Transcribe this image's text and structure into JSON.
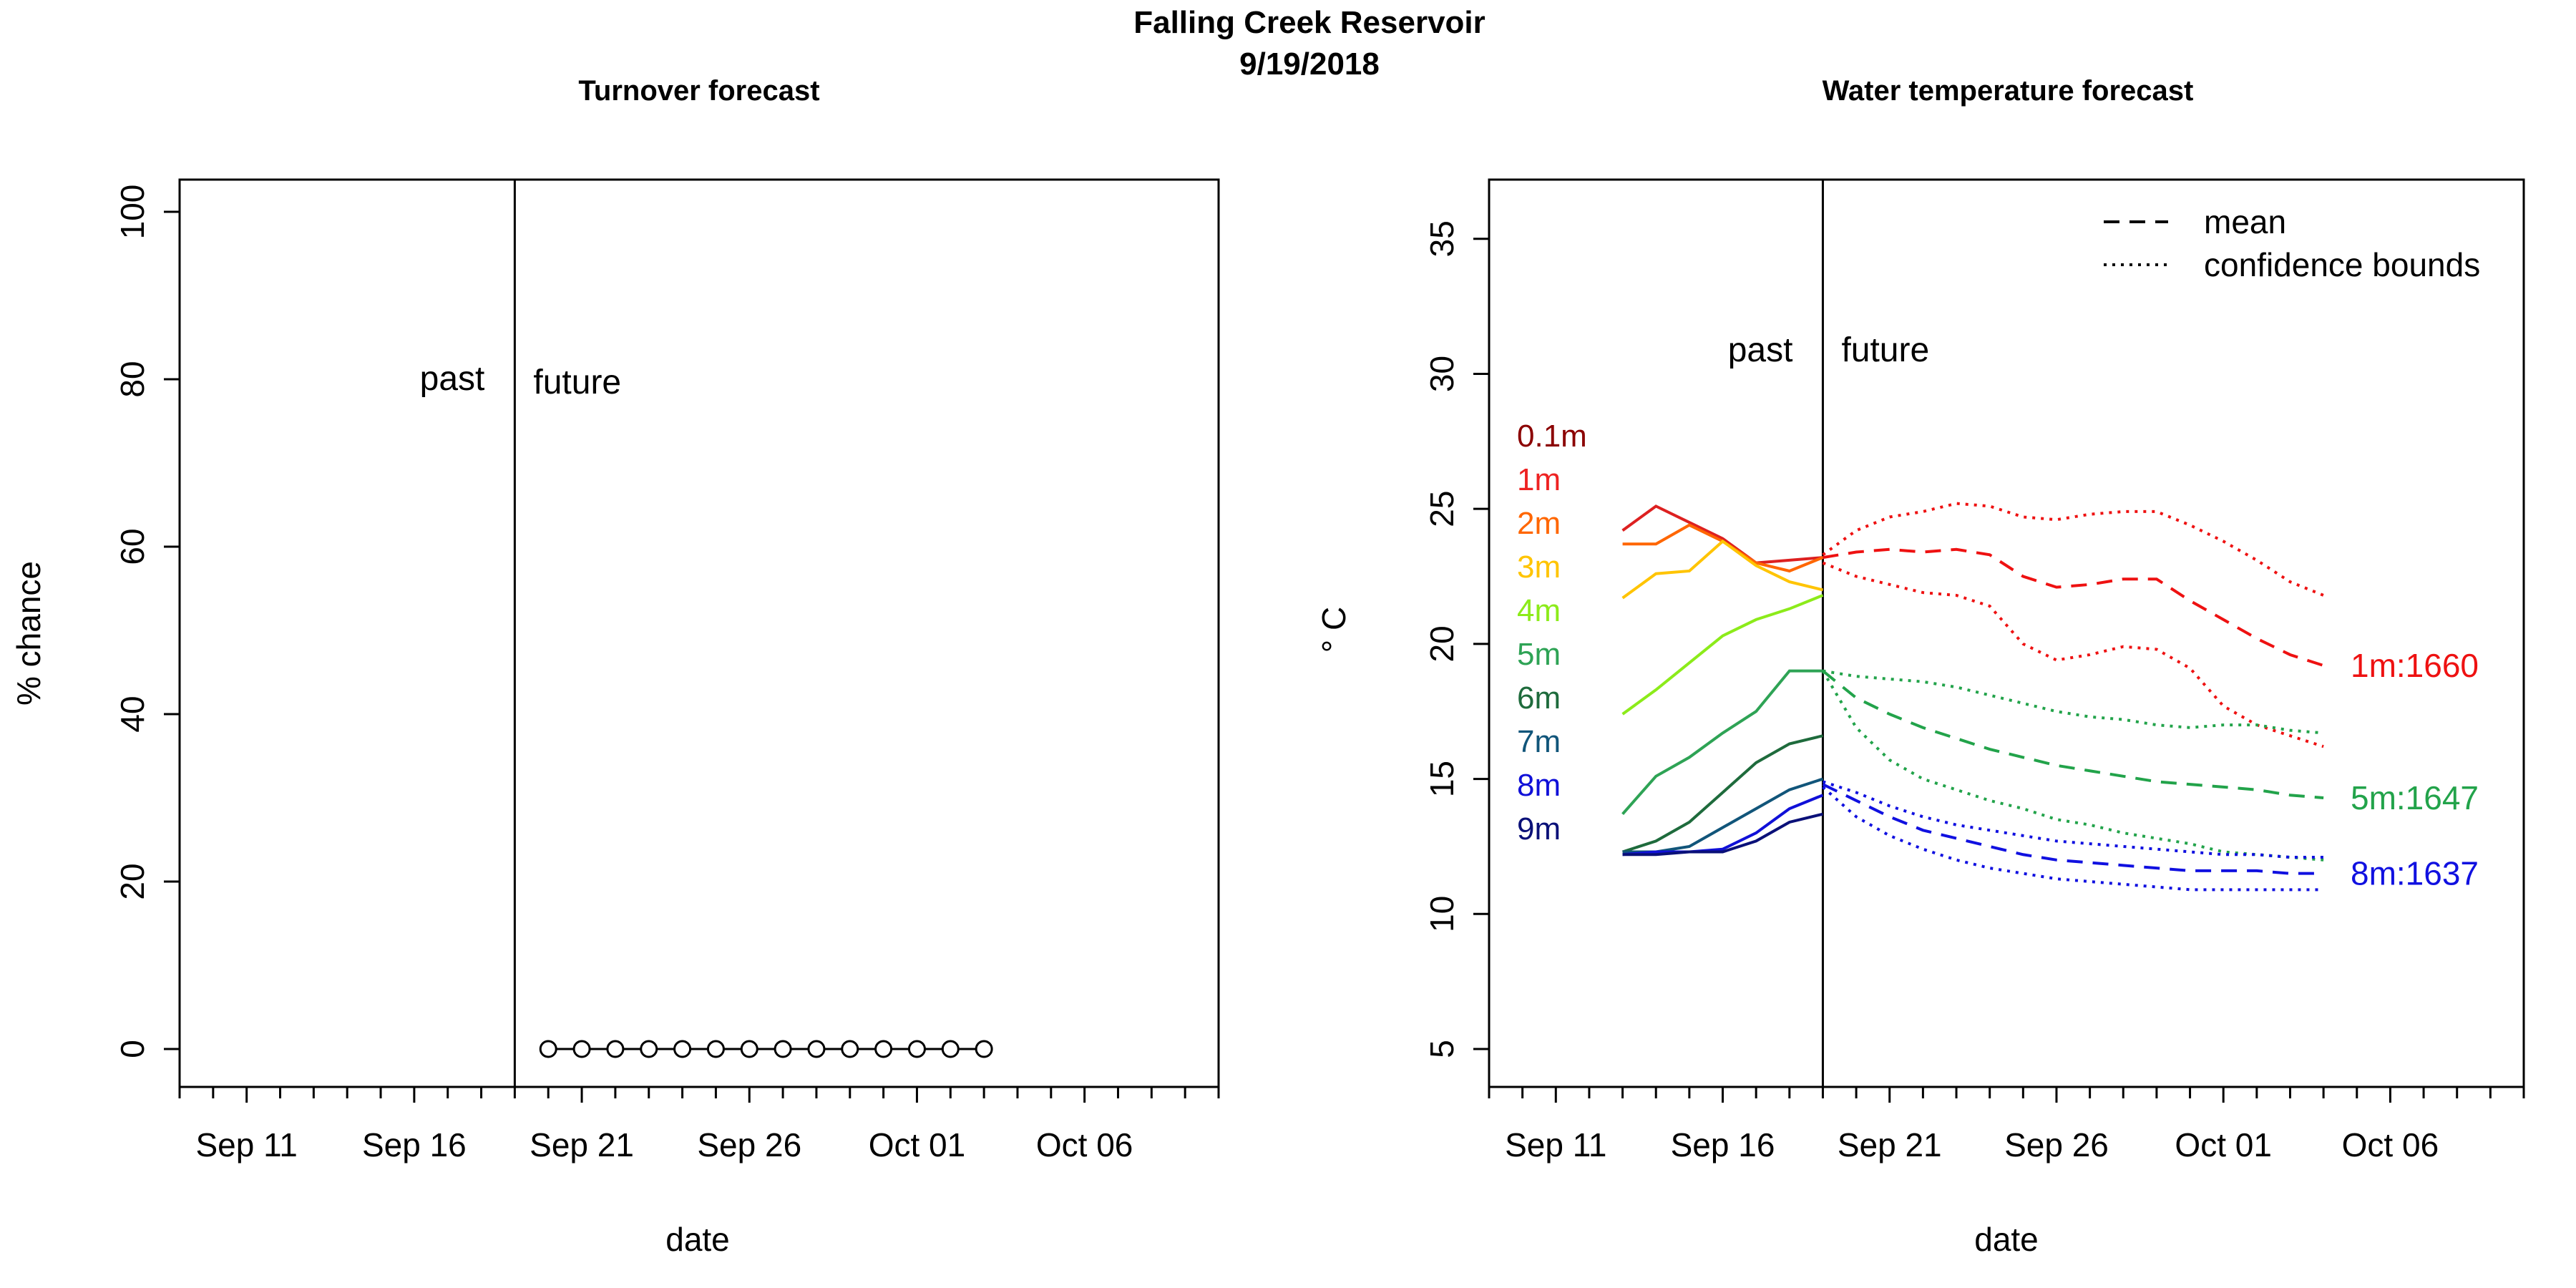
{
  "header": {
    "title": "Falling Creek Reservoir",
    "date": "9/19/2018"
  },
  "chart_data": [
    {
      "type": "line",
      "title": "Turnover forecast",
      "xlabel": "date",
      "ylabel": "% chance",
      "x_ticks": [
        "Sep 11",
        "Sep 16",
        "Sep 21",
        "Sep 26",
        "Oct 01",
        "Oct 06"
      ],
      "y_ticks": [
        "0",
        "20",
        "40",
        "60",
        "80",
        "100"
      ],
      "ylim": [
        0,
        100
      ],
      "xlim": [
        "2018-09-09",
        "2018-10-10"
      ],
      "divider_date": "2018-09-19",
      "annotations": {
        "past": "past",
        "future": "future"
      },
      "series": [
        {
          "x": [
            "2018-09-20",
            "2018-09-21",
            "2018-09-22",
            "2018-09-23",
            "2018-09-24",
            "2018-09-25",
            "2018-09-26",
            "2018-09-27",
            "2018-09-28",
            "2018-09-29",
            "2018-09-30",
            "2018-10-01",
            "2018-10-02",
            "2018-10-03"
          ],
          "values": [
            0,
            0,
            0,
            0,
            0,
            0,
            0,
            0,
            0,
            0,
            0,
            0,
            0,
            0
          ],
          "marker": "open-circle",
          "color": "#000000"
        }
      ]
    },
    {
      "type": "line",
      "title": "Water temperature forecast",
      "xlabel": "date",
      "ylabel": "° C",
      "x_ticks": [
        "Sep 11",
        "Sep 16",
        "Sep 21",
        "Sep 26",
        "Oct 01",
        "Oct 06"
      ],
      "y_ticks": [
        "5",
        "10",
        "15",
        "20",
        "25",
        "30",
        "35"
      ],
      "ylim": [
        5,
        36
      ],
      "xlim": [
        "2018-09-09",
        "2018-10-10"
      ],
      "divider_date": "2018-09-19",
      "annotations": {
        "past": "past",
        "future": "future"
      },
      "legend": {
        "position": "top-right",
        "items": [
          {
            "label": "mean",
            "style": "dashed"
          },
          {
            "label": "confidence bounds",
            "style": "dotted"
          }
        ]
      },
      "depth_labels": [
        {
          "label": "0.1m",
          "color": "#8B0000"
        },
        {
          "label": "1m",
          "color": "#EE2222"
        },
        {
          "label": "2m",
          "color": "#FF6600"
        },
        {
          "label": "3m",
          "color": "#FFC400"
        },
        {
          "label": "4m",
          "color": "#8CEB1A"
        },
        {
          "label": "5m",
          "color": "#2EA355"
        },
        {
          "label": "6m",
          "color": "#1E6B3C"
        },
        {
          "label": "7m",
          "color": "#11557A"
        },
        {
          "label": "8m",
          "color": "#1010D8"
        },
        {
          "label": "9m",
          "color": "#0A1078"
        }
      ],
      "observed_dates": [
        "2018-09-13",
        "2018-09-14",
        "2018-09-15",
        "2018-09-16",
        "2018-09-17",
        "2018-09-18",
        "2018-09-19"
      ],
      "observed_series": [
        {
          "name": "1m",
          "color": "#DD2020",
          "values": [
            24.2,
            25.1,
            24.5,
            23.9,
            23.0,
            23.1,
            23.2
          ]
        },
        {
          "name": "2m",
          "color": "#FF6600",
          "values": [
            23.7,
            23.7,
            24.4,
            23.8,
            23.0,
            22.7,
            23.2
          ]
        },
        {
          "name": "3m",
          "color": "#FFC400",
          "values": [
            21.7,
            22.6,
            22.7,
            23.8,
            22.9,
            22.3,
            22.0
          ]
        },
        {
          "name": "4m",
          "color": "#8CEB1A",
          "values": [
            17.4,
            18.3,
            19.3,
            20.3,
            20.9,
            21.3,
            21.8
          ]
        },
        {
          "name": "5m",
          "color": "#2EA355",
          "values": [
            13.7,
            15.1,
            15.8,
            16.7,
            17.5,
            19.0,
            19.0
          ]
        },
        {
          "name": "6m",
          "color": "#1E6B3C",
          "values": [
            12.3,
            12.7,
            13.4,
            14.5,
            15.6,
            16.3,
            16.6
          ]
        },
        {
          "name": "7m",
          "color": "#11557A",
          "values": [
            12.3,
            12.3,
            12.5,
            13.2,
            13.9,
            14.6,
            15.0
          ]
        },
        {
          "name": "8m",
          "color": "#1010D8",
          "values": [
            12.2,
            12.3,
            12.3,
            12.4,
            13.0,
            13.9,
            14.4
          ]
        },
        {
          "name": "9m",
          "color": "#0A1078",
          "values": [
            12.2,
            12.2,
            12.3,
            12.3,
            12.7,
            13.4,
            13.7
          ]
        }
      ],
      "forecast_dates": [
        "2018-09-19",
        "2018-09-20",
        "2018-09-21",
        "2018-09-22",
        "2018-09-23",
        "2018-09-24",
        "2018-09-25",
        "2018-09-26",
        "2018-09-27",
        "2018-09-28",
        "2018-09-29",
        "2018-09-30",
        "2018-10-01",
        "2018-10-02",
        "2018-10-03",
        "2018-10-04"
      ],
      "forecast_series": [
        {
          "name": "1m",
          "color": "#EE1111",
          "end_label": "1m:1660",
          "mean": [
            23.2,
            23.4,
            23.5,
            23.4,
            23.5,
            23.3,
            22.5,
            22.1,
            22.2,
            22.4,
            22.4,
            21.6,
            20.9,
            20.2,
            19.6,
            19.2
          ],
          "upper": [
            23.3,
            24.2,
            24.7,
            24.9,
            25.2,
            25.1,
            24.7,
            24.6,
            24.8,
            24.9,
            24.9,
            24.4,
            23.8,
            23.1,
            22.3,
            21.8
          ],
          "lower": [
            23.0,
            22.5,
            22.2,
            21.9,
            21.8,
            21.4,
            20.0,
            19.4,
            19.6,
            19.9,
            19.8,
            19.1,
            17.7,
            17.0,
            16.6,
            16.2
          ]
        },
        {
          "name": "5m",
          "color": "#22A34A",
          "end_label": "5m:1647",
          "mean": [
            19.0,
            18.0,
            17.4,
            16.9,
            16.5,
            16.1,
            15.8,
            15.5,
            15.3,
            15.1,
            14.9,
            14.8,
            14.7,
            14.6,
            14.4,
            14.3
          ],
          "upper": [
            19.0,
            18.8,
            18.7,
            18.6,
            18.4,
            18.1,
            17.8,
            17.5,
            17.3,
            17.2,
            17.0,
            16.9,
            17.0,
            17.0,
            16.8,
            16.7
          ],
          "lower": [
            19.0,
            16.9,
            15.7,
            15.0,
            14.6,
            14.2,
            13.9,
            13.5,
            13.3,
            13.0,
            12.8,
            12.6,
            12.3,
            12.2,
            12.1,
            12.0
          ]
        },
        {
          "name": "8m",
          "color": "#1010E0",
          "end_label": "8m:1637",
          "mean": [
            14.8,
            14.2,
            13.6,
            13.1,
            12.8,
            12.5,
            12.2,
            12.0,
            11.9,
            11.8,
            11.7,
            11.6,
            11.6,
            11.6,
            11.5,
            11.5
          ],
          "upper": [
            14.9,
            14.5,
            14.0,
            13.6,
            13.3,
            13.1,
            12.9,
            12.7,
            12.6,
            12.5,
            12.4,
            12.3,
            12.2,
            12.2,
            12.1,
            12.1
          ],
          "lower": [
            14.7,
            13.6,
            12.9,
            12.4,
            12.0,
            11.7,
            11.5,
            11.3,
            11.2,
            11.1,
            11.0,
            10.9,
            10.9,
            10.9,
            10.9,
            10.9
          ]
        }
      ]
    }
  ]
}
